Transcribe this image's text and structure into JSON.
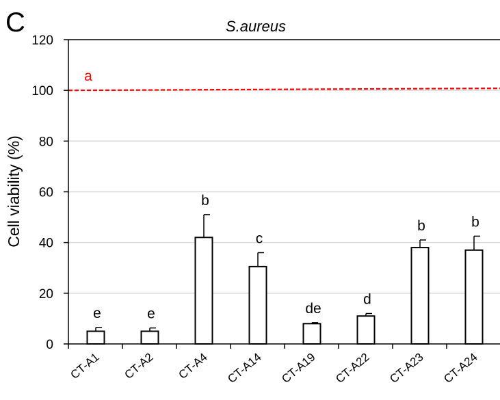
{
  "panel_letter": "C",
  "chart_data": {
    "type": "bar",
    "title": "S.aureus",
    "xlabel": "",
    "ylabel": "Cell viability (%)",
    "ylim": [
      0,
      120
    ],
    "yticks": [
      "0",
      "20",
      "40",
      "60",
      "80",
      "100",
      "120"
    ],
    "grid": true,
    "categories": [
      "CT-A1",
      "CT-A2",
      "CT-A4",
      "CT-A14",
      "CT-A19",
      "CT-A22",
      "CT-A23",
      "CT-A24"
    ],
    "values": [
      5,
      5,
      42,
      30.5,
      8,
      11,
      38,
      37
    ],
    "errors": [
      1.5,
      1.3,
      9,
      5.5,
      0.4,
      1,
      3,
      5.5
    ],
    "letters": [
      "e",
      "e",
      "b",
      "c",
      "de",
      "d",
      "b",
      "b"
    ],
    "control": {
      "value": 100,
      "letter": "a",
      "color": "#ff0000"
    },
    "bar_color": "#ffffff",
    "bar_edge_color": "#000000",
    "grid_color": "#d9d9d9"
  }
}
